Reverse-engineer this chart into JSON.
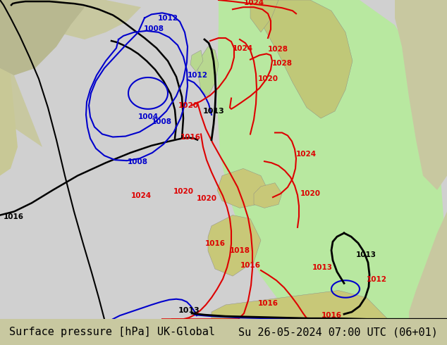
{
  "title_left": "Surface pressure [hPa] UK-Global",
  "title_right": "Su 26-05-2024 07:00 UTC (06+01)",
  "caption_bg": "#d8d8d0",
  "text_color": "#000000",
  "font_size_caption": 11,
  "land_color": "#c8c8a0",
  "ocean_gray": "#c8c8c8",
  "forecast_green": "#b8e8a0",
  "outside_land": "#c8c896",
  "isobar_red": "#dd0000",
  "isobar_blue": "#0000cc",
  "isobar_black": "#000000"
}
